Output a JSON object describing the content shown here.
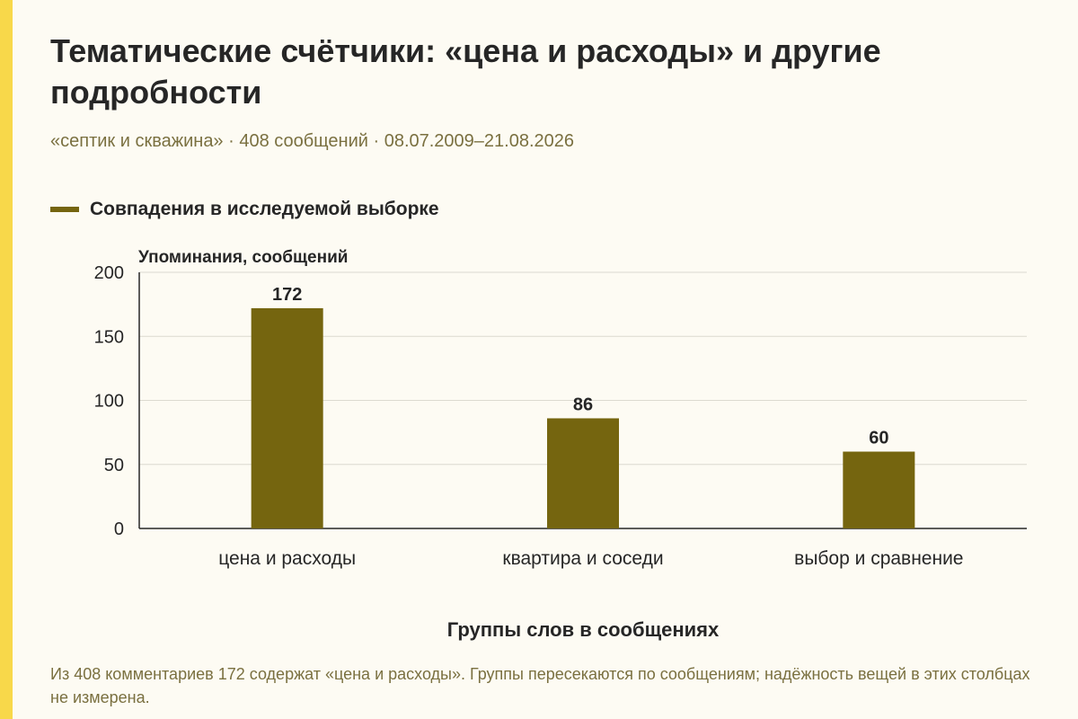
{
  "header": {
    "title": "Тематические счётчики: «цена и расходы» и другие подробности",
    "subtitle": "«септик и скважина» · 408 сообщений · 08.07.2009–21.08.2026"
  },
  "legend": {
    "label": "Совпадения в исследуемой выборке",
    "color": "#75650f"
  },
  "chart_data": {
    "type": "bar",
    "categories": [
      "цена и расходы",
      "квартира и соседи",
      "выбор и сравнение"
    ],
    "series": [
      {
        "name": "Совпадения в исследуемой выборке",
        "values": [
          172,
          86,
          60
        ]
      }
    ],
    "ylabel": "Упоминания, сообщений",
    "xlabel": "Группы слов в сообщениях",
    "ylim": [
      0,
      200
    ],
    "yticks": [
      0,
      50,
      100,
      150,
      200
    ],
    "grid": true,
    "legend_position": "top-left",
    "bar_color": "#75650f"
  },
  "footer": {
    "note": "Из 408 комментариев 172 содержат «цена и расходы». Группы пересекаются по сообщениям; надёжность вещей в этих столбцах не измерена."
  }
}
